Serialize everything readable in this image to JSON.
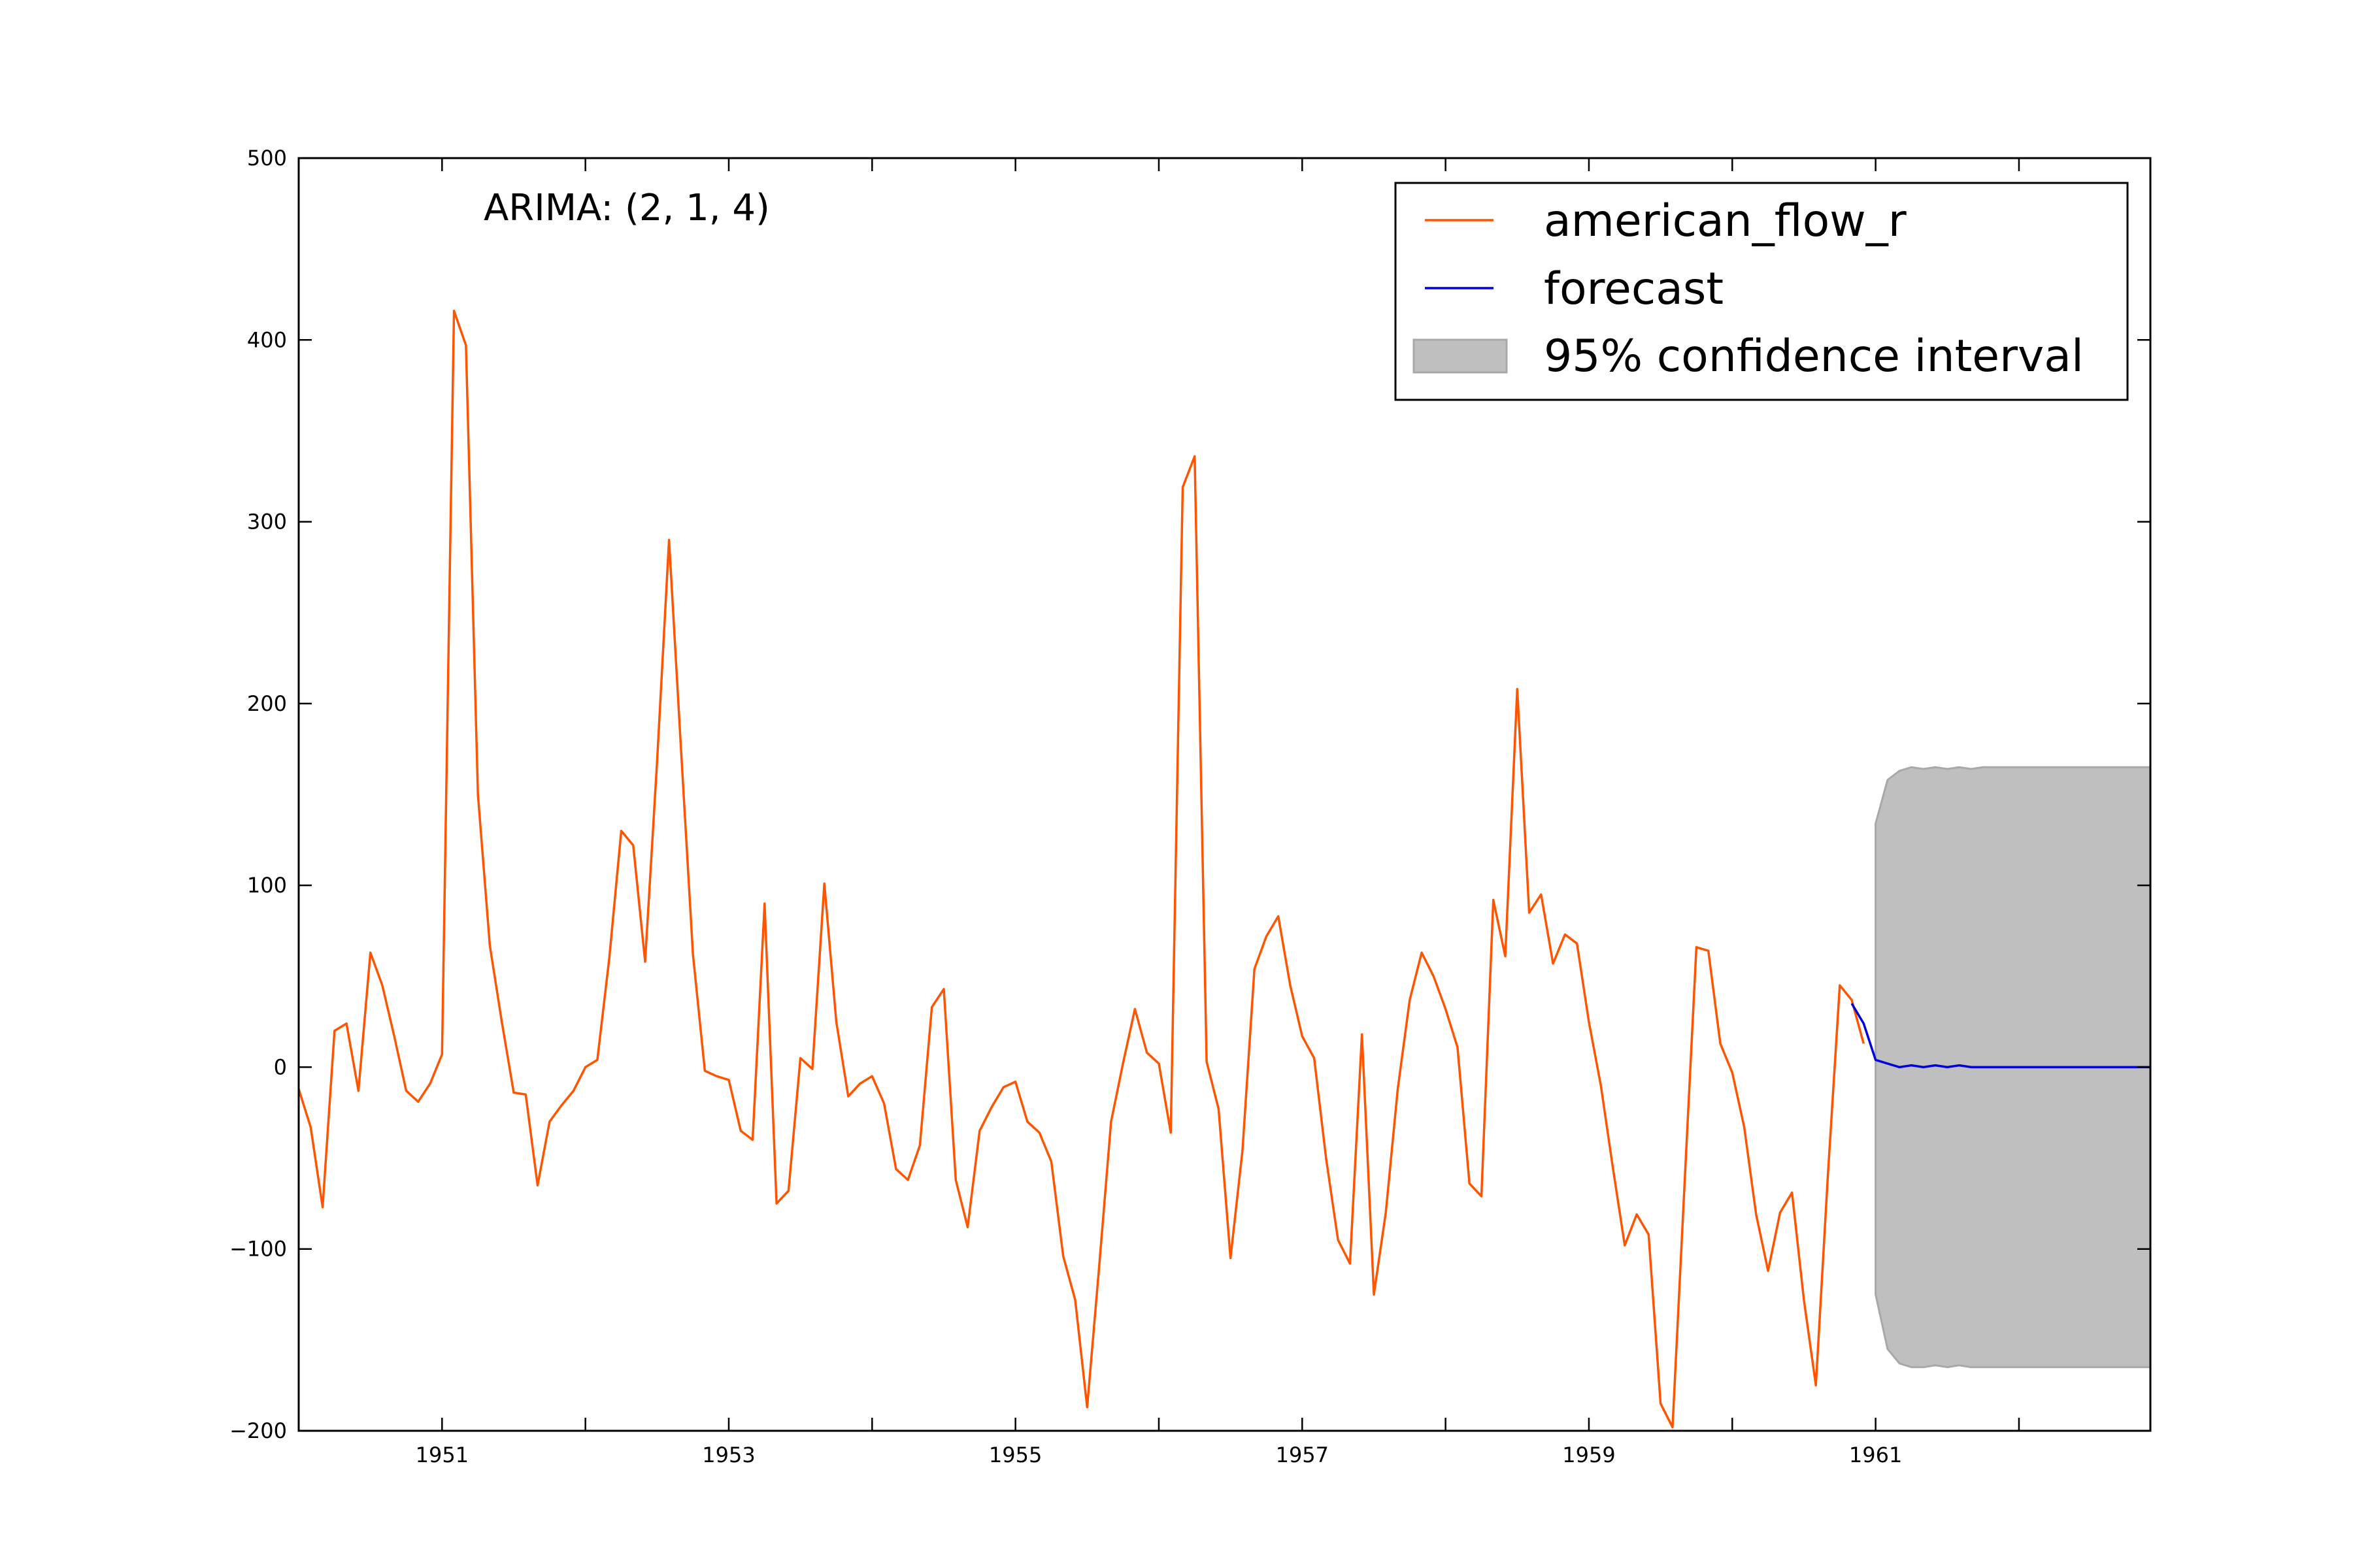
{
  "chart_data": {
    "type": "line",
    "annotation": "ARIMA: (2, 1, 4)",
    "xlim": [
      1950.0,
      1962.9167
    ],
    "ylim": [
      -200,
      500
    ],
    "x_ticks": [
      1951,
      1953,
      1955,
      1957,
      1959,
      1961
    ],
    "x_tick_labels": [
      "1951",
      "1953",
      "1955",
      "1957",
      "1959",
      "1961"
    ],
    "y_ticks": [
      -200,
      -100,
      0,
      100,
      200,
      300,
      400,
      500
    ],
    "y_tick_labels": [
      "−200",
      "−100",
      "0",
      "100",
      "200",
      "300",
      "400",
      "500"
    ],
    "legend_placement": "top-right",
    "colors": {
      "observed": "#ff5500",
      "forecast": "#0000dd",
      "confidence": "#bfbfbf"
    },
    "series": [
      {
        "name": "american_flow_r",
        "x_start": 1950.0,
        "x_step": 0.083333,
        "values": [
          -12,
          -33,
          -77,
          20,
          24,
          -13,
          63,
          45,
          17,
          -13,
          -19,
          -9,
          7,
          416,
          397,
          150,
          67,
          25,
          -14,
          -15,
          -65,
          -30,
          -21,
          -13,
          0,
          4,
          60,
          130,
          122,
          58,
          168,
          290,
          175,
          62,
          -2,
          -5,
          -7,
          -35,
          -40,
          90,
          -75,
          -68,
          5,
          -1,
          101,
          25,
          -16,
          -9,
          -5,
          -20,
          -56,
          -62,
          -43,
          33,
          43,
          -62,
          -88,
          -35,
          -22,
          -11,
          -8,
          -30,
          -36,
          -52,
          -104,
          -128,
          -187,
          -110,
          -30,
          2,
          32,
          8,
          2,
          -36,
          319,
          336,
          3,
          -23,
          -105,
          -46,
          54,
          72,
          83,
          45,
          17,
          5,
          -50,
          -95,
          -108,
          18,
          -125,
          -80,
          -12,
          37,
          63,
          50,
          32,
          11,
          -64,
          -71,
          92,
          61,
          208,
          85,
          95,
          57,
          73,
          68,
          25,
          -10,
          -55,
          -98,
          -81,
          -92,
          -185,
          -198,
          -65,
          66,
          64,
          13,
          -3,
          -33,
          -81,
          -112,
          -80,
          -69,
          -128,
          -175,
          -60,
          45,
          37,
          13
        ]
      },
      {
        "name": "forecast",
        "x": [
          1960.8333,
          1960.9167,
          1961.0,
          1961.0833,
          1961.1667,
          1961.25,
          1961.3333,
          1961.4167,
          1961.5,
          1961.5833,
          1961.6667,
          1961.75,
          1961.8333,
          1962.0,
          1962.25,
          1962.5,
          1962.9167
        ],
        "values": [
          35,
          24,
          4,
          2,
          0,
          1,
          0,
          1,
          0,
          1,
          0,
          0,
          0,
          0,
          0,
          0,
          0
        ]
      }
    ],
    "confidence_interval": {
      "name": "95% confidence interval",
      "x": [
        1961.0,
        1961.0833,
        1961.1667,
        1961.25,
        1961.3333,
        1961.4167,
        1961.5,
        1961.5833,
        1961.6667,
        1961.75,
        1962.9167
      ],
      "lower": [
        -125,
        -155,
        -163,
        -165,
        -165,
        -164,
        -165,
        -164,
        -165,
        -165,
        -165
      ],
      "upper": [
        134,
        158,
        163,
        165,
        164,
        165,
        164,
        165,
        164,
        165,
        165
      ]
    }
  }
}
